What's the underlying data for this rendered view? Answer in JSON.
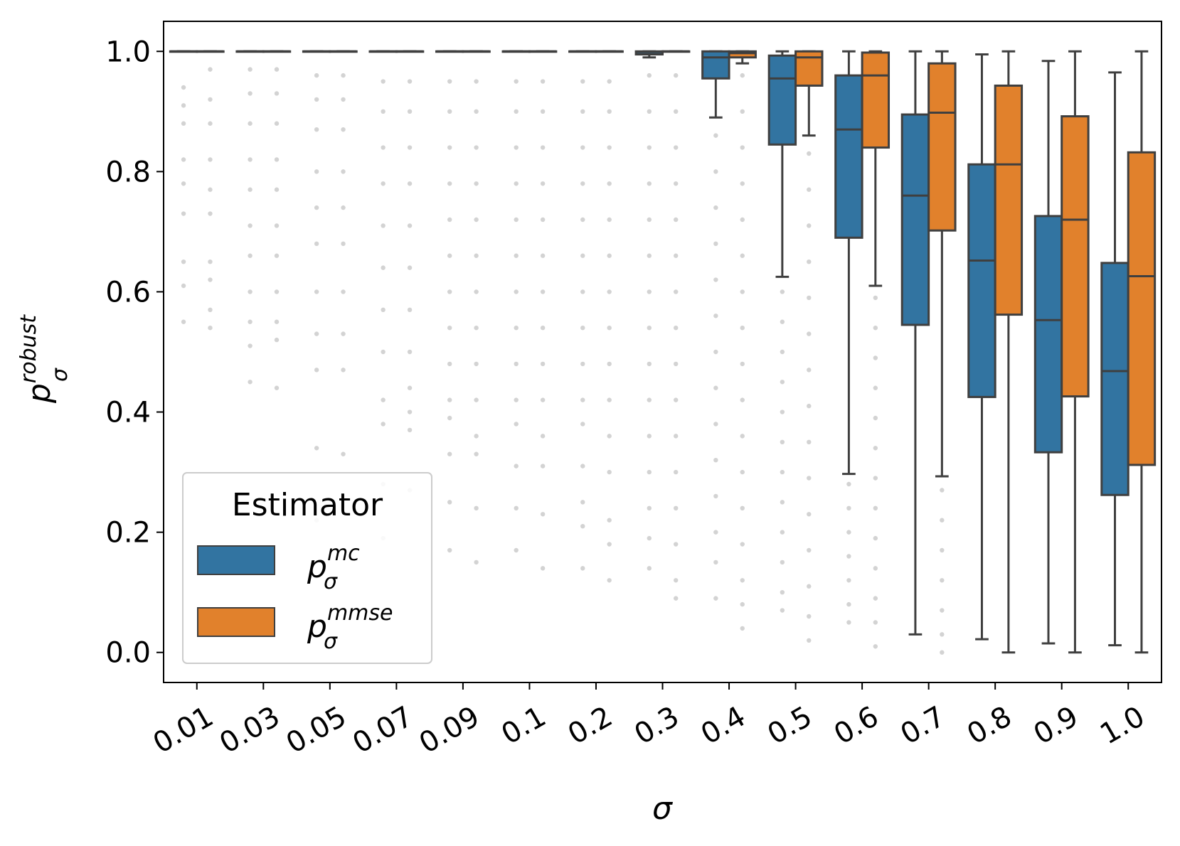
{
  "chart_data": {
    "type": "box",
    "xlabel_main": "σ",
    "ylabel": {
      "base": "p",
      "sub": "σ",
      "sup": "robust"
    },
    "ylim": [
      -0.05,
      1.05
    ],
    "yticks": [
      "0.0",
      "0.2",
      "0.4",
      "0.6",
      "0.8",
      "1.0"
    ],
    "ytick_values": [
      0.0,
      0.2,
      0.4,
      0.6,
      0.8,
      1.0
    ],
    "categories": [
      "0.01",
      "0.03",
      "0.05",
      "0.07",
      "0.09",
      "0.1",
      "0.2",
      "0.3",
      "0.4",
      "0.5",
      "0.6",
      "0.7",
      "0.8",
      "0.9",
      "1.0"
    ],
    "legend": {
      "title": "Estimator",
      "position": "lower-left",
      "entries": [
        {
          "base": "p",
          "sub": "σ",
          "sup": "mc"
        },
        {
          "base": "p",
          "sub": "σ",
          "sup": "mmse"
        }
      ]
    },
    "colors": {
      "mc": "#3274a1",
      "mmse": "#e1812c",
      "edge": "#3f3f3f",
      "outlier": "#d3d3d3"
    },
    "series": [
      {
        "name": "mc",
        "boxes": [
          {
            "q1": 1.0,
            "median": 1.0,
            "q3": 1.0,
            "whislo": 1.0,
            "whishi": 1.0,
            "fliers": [
              0.94,
              0.91,
              0.88,
              0.82,
              0.78,
              0.73,
              0.65,
              0.61,
              0.55
            ]
          },
          {
            "q1": 1.0,
            "median": 1.0,
            "q3": 1.0,
            "whislo": 1.0,
            "whishi": 1.0,
            "fliers": [
              0.97,
              0.93,
              0.88,
              0.82,
              0.77,
              0.71,
              0.66,
              0.6,
              0.55,
              0.51,
              0.45
            ]
          },
          {
            "q1": 1.0,
            "median": 1.0,
            "q3": 1.0,
            "whislo": 1.0,
            "whishi": 1.0,
            "fliers": [
              0.96,
              0.92,
              0.87,
              0.8,
              0.74,
              0.68,
              0.6,
              0.53,
              0.47,
              0.34,
              0.22
            ]
          },
          {
            "q1": 1.0,
            "median": 1.0,
            "q3": 1.0,
            "whislo": 1.0,
            "whishi": 1.0,
            "fliers": [
              0.95,
              0.9,
              0.84,
              0.78,
              0.71,
              0.64,
              0.57,
              0.5,
              0.42,
              0.38,
              0.28,
              0.19
            ]
          },
          {
            "q1": 1.0,
            "median": 1.0,
            "q3": 1.0,
            "whislo": 1.0,
            "whishi": 1.0,
            "fliers": [
              0.95,
              0.9,
              0.84,
              0.78,
              0.72,
              0.66,
              0.6,
              0.54,
              0.48,
              0.42,
              0.39,
              0.33,
              0.25,
              0.17
            ]
          },
          {
            "q1": 1.0,
            "median": 1.0,
            "q3": 1.0,
            "whislo": 1.0,
            "whishi": 1.0,
            "fliers": [
              0.95,
              0.9,
              0.84,
              0.78,
              0.72,
              0.66,
              0.6,
              0.54,
              0.48,
              0.42,
              0.38,
              0.31,
              0.24,
              0.17
            ]
          },
          {
            "q1": 1.0,
            "median": 1.0,
            "q3": 1.0,
            "whislo": 1.0,
            "whishi": 1.0,
            "fliers": [
              0.95,
              0.9,
              0.84,
              0.78,
              0.72,
              0.66,
              0.6,
              0.54,
              0.48,
              0.42,
              0.38,
              0.31,
              0.25,
              0.21,
              0.14
            ]
          },
          {
            "q1": 0.995,
            "median": 0.999,
            "q3": 1.0,
            "whislo": 0.99,
            "whishi": 1.0,
            "fliers": [
              0.96,
              0.9,
              0.84,
              0.78,
              0.72,
              0.66,
              0.6,
              0.54,
              0.48,
              0.42,
              0.36,
              0.3,
              0.24,
              0.19,
              0.14
            ]
          },
          {
            "q1": 0.955,
            "median": 0.99,
            "q3": 1.0,
            "whislo": 0.89,
            "whishi": 1.0,
            "fliers": [
              0.86,
              0.8,
              0.74,
              0.68,
              0.62,
              0.56,
              0.5,
              0.44,
              0.38,
              0.32,
              0.26,
              0.2,
              0.15,
              0.09
            ]
          },
          {
            "q1": 0.845,
            "median": 0.955,
            "q3": 0.993,
            "whislo": 0.625,
            "whishi": 1.0,
            "fliers": [
              0.6,
              0.55,
              0.5,
              0.45,
              0.4,
              0.35,
              0.3,
              0.25,
              0.2,
              0.15,
              0.1,
              0.07
            ]
          },
          {
            "q1": 0.69,
            "median": 0.87,
            "q3": 0.96,
            "whislo": 0.297,
            "whishi": 1.0,
            "fliers": [
              0.28,
              0.24,
              0.2,
              0.16,
              0.12,
              0.08,
              0.05
            ]
          },
          {
            "q1": 0.545,
            "median": 0.76,
            "q3": 0.895,
            "whislo": 0.03,
            "whishi": 1.0,
            "fliers": []
          },
          {
            "q1": 0.425,
            "median": 0.652,
            "q3": 0.812,
            "whislo": 0.022,
            "whishi": 0.995,
            "fliers": []
          },
          {
            "q1": 0.333,
            "median": 0.553,
            "q3": 0.726,
            "whislo": 0.015,
            "whishi": 0.984,
            "fliers": []
          },
          {
            "q1": 0.262,
            "median": 0.468,
            "q3": 0.648,
            "whislo": 0.012,
            "whishi": 0.965,
            "fliers": []
          }
        ]
      },
      {
        "name": "mmse",
        "boxes": [
          {
            "q1": 1.0,
            "median": 1.0,
            "q3": 1.0,
            "whislo": 1.0,
            "whishi": 1.0,
            "fliers": [
              0.97,
              0.92,
              0.88,
              0.82,
              0.77,
              0.73,
              0.65,
              0.62,
              0.57,
              0.54
            ]
          },
          {
            "q1": 1.0,
            "median": 1.0,
            "q3": 1.0,
            "whislo": 1.0,
            "whishi": 1.0,
            "fliers": [
              0.97,
              0.93,
              0.88,
              0.82,
              0.77,
              0.71,
              0.66,
              0.6,
              0.55,
              0.52,
              0.44
            ]
          },
          {
            "q1": 1.0,
            "median": 1.0,
            "q3": 1.0,
            "whislo": 1.0,
            "whishi": 1.0,
            "fliers": [
              0.96,
              0.92,
              0.87,
              0.8,
              0.74,
              0.68,
              0.6,
              0.53,
              0.47,
              0.33
            ]
          },
          {
            "q1": 1.0,
            "median": 1.0,
            "q3": 1.0,
            "whislo": 1.0,
            "whishi": 1.0,
            "fliers": [
              0.95,
              0.9,
              0.84,
              0.78,
              0.71,
              0.64,
              0.57,
              0.5,
              0.44,
              0.4,
              0.37,
              0.27
            ]
          },
          {
            "q1": 1.0,
            "median": 1.0,
            "q3": 1.0,
            "whislo": 1.0,
            "whishi": 1.0,
            "fliers": [
              0.95,
              0.9,
              0.84,
              0.78,
              0.72,
              0.66,
              0.6,
              0.54,
              0.48,
              0.42,
              0.36,
              0.33,
              0.24,
              0.15
            ]
          },
          {
            "q1": 1.0,
            "median": 1.0,
            "q3": 1.0,
            "whislo": 1.0,
            "whishi": 1.0,
            "fliers": [
              0.95,
              0.9,
              0.84,
              0.78,
              0.72,
              0.66,
              0.6,
              0.54,
              0.48,
              0.42,
              0.36,
              0.31,
              0.23,
              0.14
            ]
          },
          {
            "q1": 1.0,
            "median": 1.0,
            "q3": 1.0,
            "whislo": 1.0,
            "whishi": 1.0,
            "fliers": [
              0.95,
              0.9,
              0.84,
              0.78,
              0.72,
              0.66,
              0.6,
              0.54,
              0.48,
              0.42,
              0.36,
              0.3,
              0.22,
              0.18,
              0.12
            ]
          },
          {
            "q1": 1.0,
            "median": 1.0,
            "q3": 1.0,
            "whislo": 1.0,
            "whishi": 1.0,
            "fliers": [
              0.96,
              0.9,
              0.84,
              0.78,
              0.72,
              0.66,
              0.6,
              0.54,
              0.48,
              0.42,
              0.36,
              0.3,
              0.24,
              0.18,
              0.12,
              0.09
            ]
          },
          {
            "q1": 0.99,
            "median": 0.997,
            "q3": 1.0,
            "whislo": 0.98,
            "whishi": 1.0,
            "fliers": [
              0.96,
              0.9,
              0.84,
              0.78,
              0.72,
              0.66,
              0.6,
              0.54,
              0.48,
              0.42,
              0.36,
              0.3,
              0.24,
              0.18,
              0.12,
              0.08,
              0.04
            ]
          },
          {
            "q1": 0.943,
            "median": 0.99,
            "q3": 1.0,
            "whislo": 0.86,
            "whishi": 1.0,
            "fliers": [
              0.83,
              0.77,
              0.71,
              0.65,
              0.59,
              0.53,
              0.47,
              0.41,
              0.35,
              0.29,
              0.23,
              0.17,
              0.11,
              0.06,
              0.02
            ]
          },
          {
            "q1": 0.84,
            "median": 0.96,
            "q3": 0.998,
            "whislo": 0.61,
            "whishi": 1.0,
            "fliers": [
              0.59,
              0.54,
              0.49,
              0.44,
              0.39,
              0.34,
              0.29,
              0.24,
              0.19,
              0.14,
              0.09,
              0.05,
              0.01
            ]
          },
          {
            "q1": 0.702,
            "median": 0.898,
            "q3": 0.98,
            "whislo": 0.293,
            "whishi": 1.0,
            "fliers": [
              0.27,
              0.22,
              0.17,
              0.12,
              0.07,
              0.03,
              0.0
            ]
          },
          {
            "q1": 0.562,
            "median": 0.812,
            "q3": 0.943,
            "whislo": 0.0,
            "whishi": 1.0,
            "fliers": []
          },
          {
            "q1": 0.426,
            "median": 0.72,
            "q3": 0.892,
            "whislo": 0.0,
            "whishi": 1.0,
            "fliers": []
          },
          {
            "q1": 0.312,
            "median": 0.626,
            "q3": 0.832,
            "whislo": 0.0,
            "whishi": 1.0,
            "fliers": []
          }
        ]
      }
    ]
  }
}
